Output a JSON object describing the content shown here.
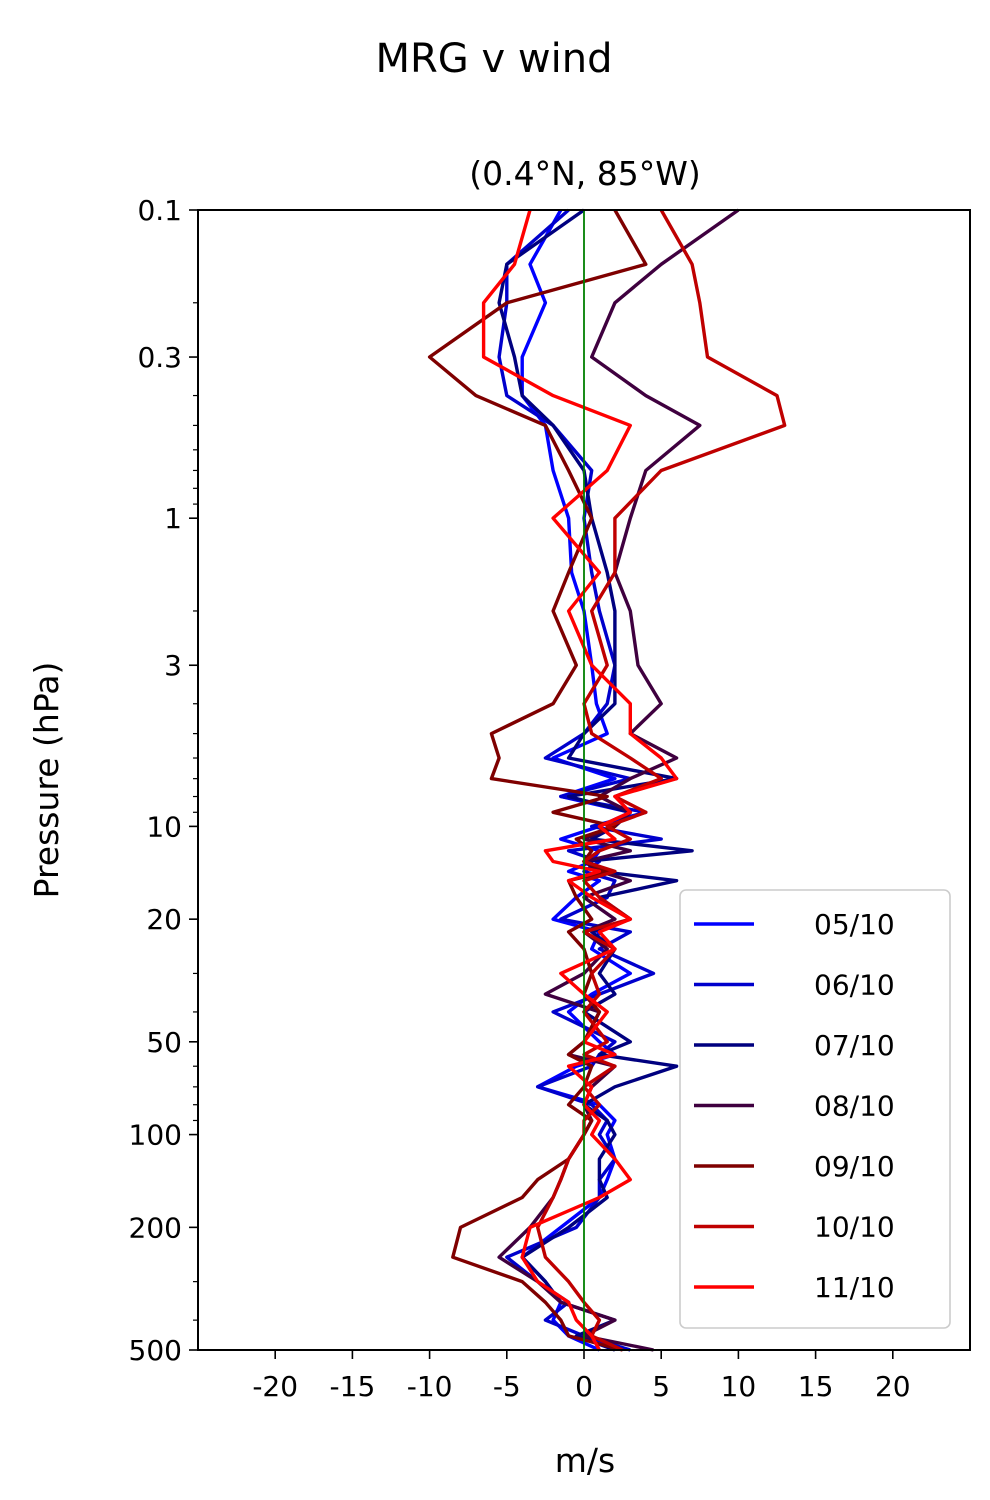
{
  "chart_data": {
    "type": "line",
    "title": "MRG v wind",
    "subtitle": "(0.4°N, 85°W)",
    "xlabel": "m/s",
    "ylabel": "Pressure (hPa)",
    "xlim": [
      -25,
      25
    ],
    "ylim": [
      500,
      0.1
    ],
    "yscale": "log",
    "xticks": [
      -20,
      -15,
      -10,
      -5,
      0,
      5,
      10,
      15,
      20
    ],
    "xtick_labels": [
      "-20",
      "-15",
      "-10",
      "-5",
      "0",
      "5",
      "10",
      "15",
      "20"
    ],
    "yticks": [
      0.1,
      0.3,
      1,
      3,
      10,
      20,
      50,
      100,
      200,
      500
    ],
    "ytick_labels": [
      "0.1",
      "0.3",
      "1",
      "3",
      "10",
      "20",
      "50",
      "100",
      "200",
      "500"
    ],
    "zero_line": {
      "x": 0,
      "color": "#008000"
    },
    "grid": false,
    "legend_position": "lower-right",
    "pressure_levels": [
      0.1,
      0.15,
      0.2,
      0.3,
      0.4,
      0.5,
      0.7,
      1,
      1.5,
      2,
      3,
      4,
      5,
      6,
      7,
      8,
      9,
      10,
      11,
      12,
      13,
      14,
      15,
      17,
      20,
      22,
      25,
      30,
      35,
      40,
      50,
      55,
      60,
      70,
      80,
      90,
      100,
      120,
      140,
      160,
      200,
      250,
      300,
      350,
      400,
      450,
      500
    ],
    "series": [
      {
        "name": "05/10",
        "color": "#0000ff",
        "values": [
          -1.5,
          -3.5,
          -2.5,
          -4,
          -4,
          -2.5,
          -2,
          -1,
          -0.8,
          0,
          0.5,
          0.8,
          1.5,
          -2,
          2,
          -1.5,
          3,
          1,
          -1.5,
          1,
          0.5,
          -1,
          1,
          -0.5,
          -2,
          1,
          0.5,
          3,
          0.5,
          -1,
          1,
          2,
          -0.5,
          -3,
          1,
          2,
          1.5,
          2,
          1.5,
          1,
          -1.5,
          -4,
          -2.5,
          -1.5,
          -2,
          -1,
          1
        ]
      },
      {
        "name": "06/10",
        "color": "#0000cc",
        "values": [
          -1,
          -5,
          -5,
          -5.5,
          -5,
          -2,
          0.5,
          0,
          0.5,
          1,
          2,
          1.5,
          0,
          -2.5,
          3,
          -1.5,
          4,
          0.5,
          5,
          -1,
          1,
          0,
          2,
          1.5,
          -1.5,
          3,
          1,
          4.5,
          1,
          -2,
          2,
          1,
          0.5,
          -3,
          0.5,
          1.5,
          1,
          2,
          1,
          1,
          -0.5,
          -5,
          -3,
          -1,
          -2.5,
          0,
          3
        ]
      },
      {
        "name": "07/10",
        "color": "#00007f",
        "values": [
          0,
          -5,
          -5.5,
          -4.5,
          -4,
          -2,
          0,
          0.5,
          1.5,
          2,
          2,
          2,
          0,
          -1,
          6,
          -1,
          3,
          2,
          0.5,
          7,
          0,
          1,
          6,
          1,
          3,
          0.5,
          2,
          1,
          2,
          0,
          3,
          1,
          6,
          2,
          0,
          1.5,
          2,
          1,
          1,
          1.5,
          -1,
          -4,
          -2.5,
          -1.5,
          2,
          -0.5,
          2
        ]
      },
      {
        "name": "08/10",
        "color": "#3f003f",
        "values": [
          10,
          5,
          2,
          0.5,
          4,
          7.5,
          4,
          3,
          2,
          3,
          3.5,
          5,
          3,
          6,
          3,
          1,
          3,
          2,
          0,
          3,
          0,
          1,
          3,
          0,
          2,
          0,
          1.5,
          0,
          -2.5,
          1,
          0,
          -1,
          2,
          0.5,
          0,
          0.5,
          0,
          -1,
          -1.5,
          -2,
          -3.5,
          -5.5,
          -3,
          -1.5,
          2,
          0,
          4.5
        ]
      },
      {
        "name": "09/10",
        "color": "#7f0000",
        "values": [
          2,
          4,
          -5,
          -10,
          -7,
          -2.5,
          -1,
          0.5,
          -1,
          -2,
          -0.5,
          -2,
          -6,
          -5.5,
          -6,
          1.5,
          -2,
          2,
          -0.5,
          0.5,
          0,
          1.5,
          -1,
          -0.5,
          0.5,
          -1,
          0,
          0.5,
          0,
          1,
          0,
          -1,
          0.5,
          0,
          -1,
          0.5,
          0,
          -1,
          -3,
          -4,
          -8,
          -8.5,
          -4,
          -2.5,
          -1.5,
          -1,
          2.5
        ]
      },
      {
        "name": "10/10",
        "color": "#bf0000",
        "values": [
          5,
          7,
          7.5,
          8,
          12.5,
          13,
          5,
          2,
          2,
          0.5,
          1.5,
          0,
          0.5,
          3,
          5,
          2,
          4,
          1.5,
          3,
          1,
          0,
          2,
          0,
          1,
          3,
          0,
          2,
          0.5,
          1,
          0,
          1.5,
          0,
          2,
          0,
          1,
          0,
          0,
          -1,
          -1.5,
          -2,
          -3,
          -2.5,
          -1,
          0,
          1,
          0.5,
          2.5
        ]
      },
      {
        "name": "11/10",
        "color": "#ff0000",
        "values": [
          -3.5,
          -4.5,
          -6.5,
          -6.5,
          -2,
          3,
          1.5,
          -2,
          1,
          -1,
          0.5,
          3,
          3,
          5,
          6,
          2,
          3,
          1,
          2,
          -2.5,
          -2,
          1,
          -1,
          0.5,
          3,
          1,
          2,
          -1.5,
          0,
          1.5,
          0,
          2,
          -1,
          0.5,
          0,
          1,
          0.5,
          2,
          3,
          1,
          -3.5,
          -4,
          -3,
          -1,
          -0.5,
          0.5,
          1
        ]
      }
    ]
  }
}
